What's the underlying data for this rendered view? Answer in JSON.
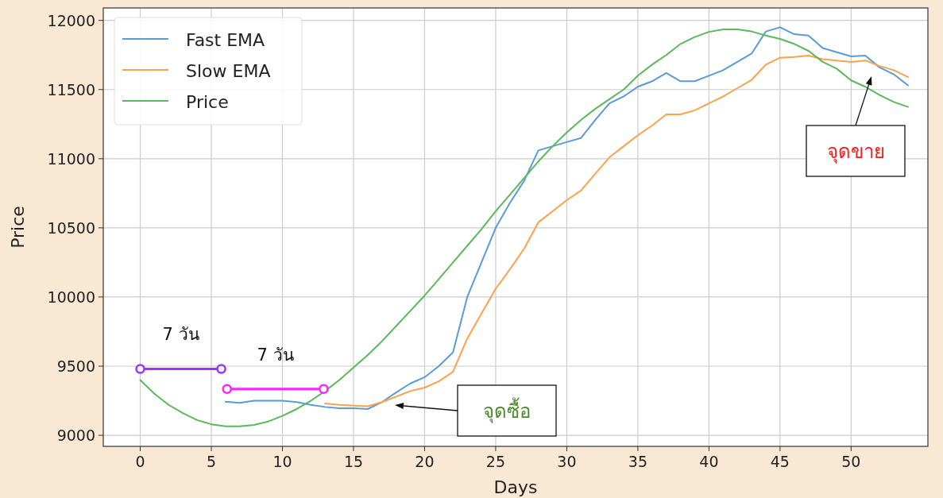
{
  "chart_data": {
    "type": "line",
    "xlabel": "Days",
    "ylabel": "Price",
    "x": [
      0,
      1,
      2,
      3,
      4,
      5,
      6,
      7,
      8,
      9,
      10,
      11,
      12,
      13,
      14,
      15,
      16,
      17,
      18,
      19,
      20,
      21,
      22,
      23,
      24,
      25,
      26,
      27,
      28,
      29,
      30,
      31,
      32,
      33,
      34,
      35,
      36,
      37,
      38,
      39,
      40,
      41,
      42,
      43,
      44,
      45,
      46,
      47,
      48,
      49,
      50,
      51,
      52,
      53,
      54
    ],
    "series": [
      {
        "name": "Fast EMA",
        "color": "#5b9bd5",
        "values": [
          null,
          null,
          null,
          null,
          null,
          null,
          9243,
          9235,
          9250,
          9250,
          9250,
          9240,
          9220,
          9205,
          9195,
          9195,
          9190,
          9240,
          9310,
          9375,
          9420,
          9500,
          9600,
          10000,
          10250,
          10500,
          10680,
          10840,
          11060,
          11090,
          11120,
          11150,
          11280,
          11400,
          11450,
          11520,
          11560,
          11620,
          11560,
          11560,
          11600,
          11640,
          11700,
          11760,
          11920,
          11950,
          11900,
          11890,
          11800,
          11770,
          11740,
          11745,
          11660,
          11610,
          11530
        ]
      },
      {
        "name": "Slow EMA",
        "color": "#ffa04a",
        "values": [
          null,
          null,
          null,
          null,
          null,
          null,
          null,
          null,
          null,
          null,
          null,
          null,
          null,
          9230,
          9220,
          9215,
          9210,
          9240,
          9280,
          9320,
          9345,
          9390,
          9460,
          9700,
          9880,
          10060,
          10200,
          10350,
          10540,
          10620,
          10700,
          10770,
          10890,
          11010,
          11090,
          11170,
          11240,
          11320,
          11320,
          11350,
          11400,
          11450,
          11510,
          11570,
          11680,
          11730,
          11735,
          11745,
          11720,
          11710,
          11700,
          11710,
          11670,
          11640,
          11590
        ]
      },
      {
        "name": "Price",
        "color": "#5cb85c",
        "values": [
          9400,
          9300,
          9220,
          9160,
          9110,
          9080,
          9065,
          9065,
          9075,
          9100,
          9140,
          9190,
          9250,
          9320,
          9400,
          9490,
          9580,
          9680,
          9790,
          9900,
          10010,
          10130,
          10250,
          10370,
          10490,
          10620,
          10740,
          10860,
          10980,
          11090,
          11190,
          11280,
          11360,
          11430,
          11500,
          11600,
          11680,
          11750,
          11830,
          11880,
          11917,
          11935,
          11935,
          11920,
          11890,
          11866,
          11830,
          11780,
          11700,
          11650,
          11566,
          11520,
          11460,
          11410,
          11374
        ]
      },
      {
        "name": "7 วัน",
        "color": "#9933ff",
        "x": [
          0,
          5.7
        ],
        "values": [
          9480,
          9480
        ],
        "marker": "circle"
      },
      {
        "name": "7 วัน",
        "color": "#ff22ff",
        "x": [
          6.1,
          12.9
        ],
        "values": [
          9335,
          9335
        ],
        "marker": "circle"
      }
    ],
    "annotations": [
      "จุดซื้อ",
      "จุดขาย"
    ],
    "xlim": [
      -2.6,
      55.4
    ],
    "ylim": [
      8920,
      12090
    ],
    "xticks": [
      0,
      5,
      10,
      15,
      20,
      25,
      30,
      35,
      40,
      45,
      50
    ],
    "yticks": [
      9000,
      9500,
      10000,
      10500,
      11000,
      11500,
      12000
    ],
    "grid": true,
    "legend": "top left"
  }
}
